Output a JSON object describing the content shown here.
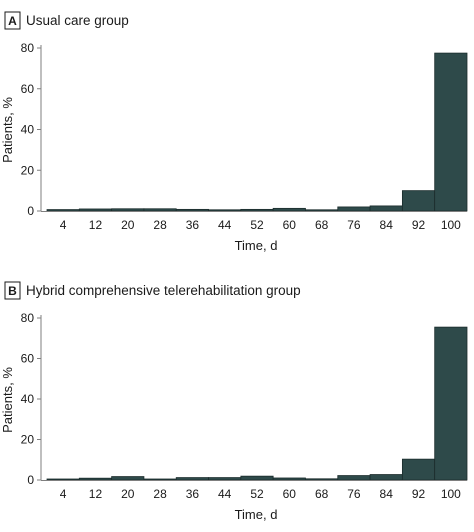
{
  "chart_data": [
    {
      "type": "bar",
      "panel_letter": "A",
      "title": "Usual care group",
      "xlabel": "Time, d",
      "ylabel": "Patients, %",
      "ylim": [
        0,
        80
      ],
      "yticks": [
        0,
        20,
        40,
        60,
        80
      ],
      "categories": [
        "4",
        "12",
        "20",
        "28",
        "36",
        "44",
        "52",
        "60",
        "68",
        "76",
        "84",
        "92",
        "100"
      ],
      "values": [
        0.7,
        1.0,
        1.1,
        1.1,
        0.8,
        0.6,
        0.8,
        1.3,
        0.6,
        2.0,
        2.5,
        10.0,
        77.5
      ],
      "grid": false,
      "color": "#2e4a4a"
    },
    {
      "type": "bar",
      "panel_letter": "B",
      "title": "Hybrid comprehensive telerehabilitation group",
      "xlabel": "Time, d",
      "ylabel": "Patients, %",
      "ylim": [
        0,
        80
      ],
      "yticks": [
        0,
        20,
        40,
        60,
        80
      ],
      "categories": [
        "4",
        "12",
        "20",
        "28",
        "36",
        "44",
        "52",
        "60",
        "68",
        "76",
        "84",
        "92",
        "100"
      ],
      "values": [
        0.5,
        0.9,
        1.7,
        0.5,
        1.2,
        1.2,
        1.9,
        1.0,
        0.6,
        2.2,
        2.7,
        10.3,
        75.5
      ],
      "grid": false,
      "color": "#2e4a4a"
    }
  ]
}
